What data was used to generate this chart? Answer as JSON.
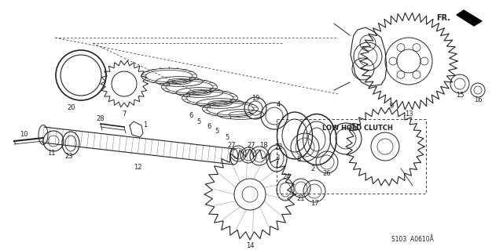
{
  "bg_color": "#ffffff",
  "line_color": "#222222",
  "fig_width": 6.4,
  "fig_height": 3.19,
  "dpi": 100,
  "diagram_code": "S103 A0610Å",
  "low_hold_clutch_label": "LOW HOLD CLUTCH",
  "fr_label": "FR."
}
